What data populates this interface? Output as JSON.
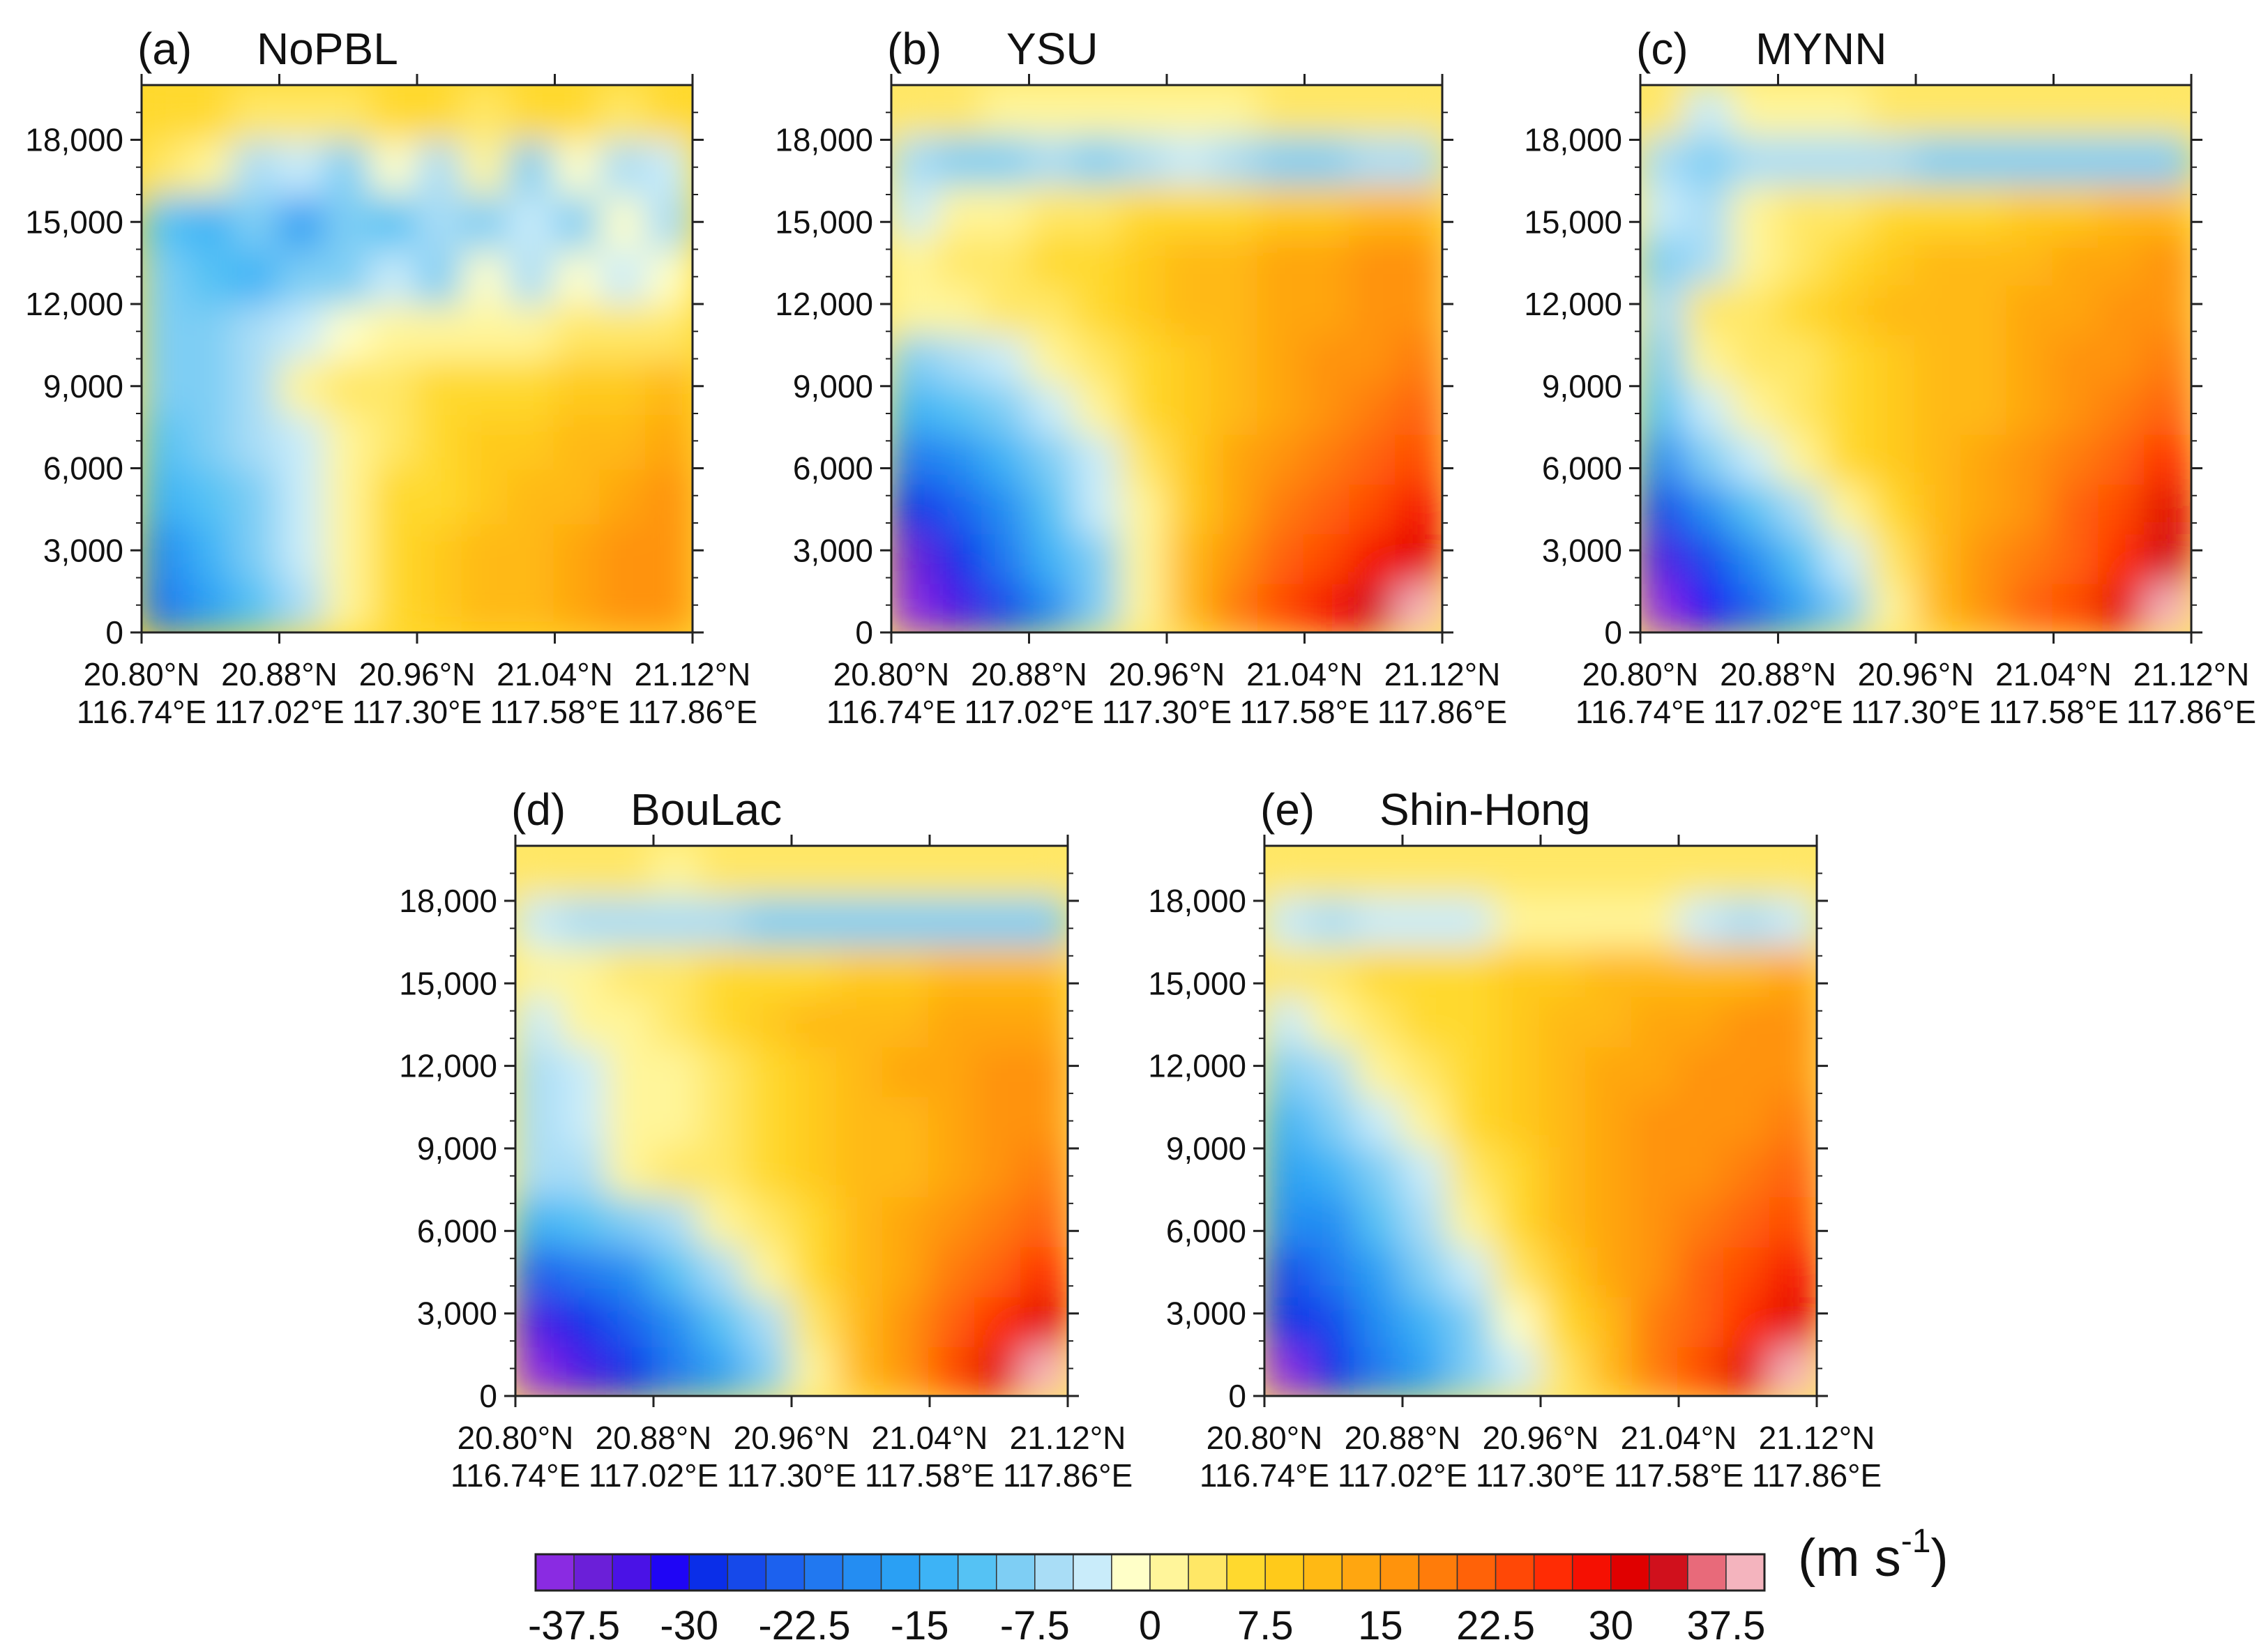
{
  "chart_data": [
    {
      "id": "a",
      "type": "heatmap",
      "panel_label": "(a)",
      "title": "NoPBL",
      "xlabel": "",
      "ylabel": "",
      "ylim": [
        0,
        20000
      ],
      "ytick_labels": [
        "0",
        "3,000",
        "6,000",
        "9,000",
        "12,000",
        "15,000",
        "18,000"
      ],
      "xtick_labels_lat": [
        "20.80°N",
        "20.88°N",
        "20.96°N",
        "21.04°N",
        "21.12°N"
      ],
      "xtick_labels_lon": [
        "116.74°E",
        "117.02°E",
        "117.30°E",
        "117.58°E",
        "117.86°E"
      ],
      "description_of_field": "cross-section wind speed; weak westerly/easterly mix aloft, negative (blue) at low levels west, positive up to ~20 m/s east",
      "values": [
        [
          -22,
          -17,
          -12,
          -6,
          2,
          6,
          8,
          10,
          12,
          14,
          15,
          17
        ],
        [
          -18,
          -14,
          -10,
          -4,
          2,
          6,
          8,
          10,
          12,
          14,
          15,
          16
        ],
        [
          -15,
          -12,
          -8,
          -4,
          1,
          5,
          7,
          9,
          11,
          12,
          14,
          15
        ],
        [
          -12,
          -10,
          -7,
          -3,
          1,
          4,
          6,
          8,
          9,
          11,
          12,
          13
        ],
        [
          -9,
          -8,
          -6,
          2,
          3,
          4,
          5,
          6,
          7,
          8,
          9,
          10
        ],
        [
          -8,
          -10,
          -6,
          -4,
          -2,
          0,
          2,
          1,
          2,
          3,
          4,
          4
        ],
        [
          -10,
          -12,
          -14,
          -8,
          -10,
          -4,
          -8,
          -2,
          -6,
          -1,
          -4,
          -2
        ],
        [
          -12,
          -14,
          -10,
          -16,
          -8,
          -12,
          -6,
          -10,
          -4,
          -8,
          -2,
          -6
        ],
        [
          4,
          2,
          -6,
          -4,
          -8,
          -2,
          -6,
          0,
          -8,
          -2,
          -6,
          -4
        ],
        [
          6,
          5,
          4,
          3,
          4,
          5,
          6,
          4,
          5,
          6,
          4,
          5
        ]
      ]
    },
    {
      "id": "b",
      "type": "heatmap",
      "panel_label": "(b)",
      "title": "YSU",
      "ylim": [
        0,
        20000
      ],
      "ytick_labels": [
        "0",
        "3,000",
        "6,000",
        "9,000",
        "12,000",
        "15,000",
        "18,000"
      ],
      "xtick_labels_lat": [
        "20.80°N",
        "20.88°N",
        "20.96°N",
        "21.04°N",
        "21.12°N"
      ],
      "xtick_labels_lon": [
        "116.74°E",
        "117.02°E",
        "117.30°E",
        "117.58°E",
        "117.86°E"
      ],
      "values": [
        [
          -40,
          -34,
          -26,
          -18,
          -10,
          2,
          12,
          18,
          24,
          28,
          33,
          40
        ],
        [
          -36,
          -28,
          -22,
          -15,
          -8,
          2,
          10,
          16,
          20,
          24,
          28,
          32
        ],
        [
          -30,
          -24,
          -18,
          -12,
          -5,
          2,
          9,
          14,
          18,
          22,
          24,
          28
        ],
        [
          -22,
          -18,
          -14,
          -8,
          -3,
          3,
          9,
          13,
          16,
          19,
          21,
          24
        ],
        [
          -14,
          -12,
          -9,
          -5,
          2,
          5,
          9,
          12,
          14,
          16,
          18,
          20
        ],
        [
          -8,
          -6,
          -3,
          2,
          4,
          6,
          9,
          11,
          13,
          15,
          16,
          18
        ],
        [
          1,
          2,
          3,
          4,
          6,
          8,
          10,
          12,
          13,
          14,
          15,
          16
        ],
        [
          2,
          3,
          4,
          5,
          7,
          9,
          11,
          12,
          13,
          14,
          15,
          16
        ],
        [
          -5,
          2,
          2,
          3,
          4,
          5,
          6,
          7,
          8,
          9,
          10,
          12
        ],
        [
          -6,
          -8,
          -8,
          -6,
          -8,
          -6,
          -4,
          -6,
          -8,
          -8,
          -6,
          -6
        ],
        [
          3,
          3,
          2,
          1,
          2,
          1,
          2,
          2,
          3,
          3,
          3,
          3
        ]
      ]
    },
    {
      "id": "c",
      "type": "heatmap",
      "panel_label": "(c)",
      "title": "MYNN",
      "ylim": [
        0,
        20000
      ],
      "ytick_labels": [
        "0",
        "3,000",
        "6,000",
        "9,000",
        "12,000",
        "15,000",
        "18,000"
      ],
      "xtick_labels_lat": [
        "20.80°N",
        "20.88°N",
        "20.96°N",
        "21.04°N",
        "21.12°N"
      ],
      "xtick_labels_lon": [
        "116.74°E",
        "117.02°E",
        "117.30°E",
        "117.58°E",
        "117.86°E"
      ],
      "values": [
        [
          -40,
          -32,
          -24,
          -16,
          -8,
          2,
          10,
          16,
          20,
          24,
          30,
          38
        ],
        [
          -34,
          -26,
          -18,
          -12,
          -4,
          4,
          10,
          15,
          18,
          22,
          27,
          34
        ],
        [
          -26,
          -18,
          -12,
          -6,
          2,
          6,
          10,
          14,
          17,
          20,
          24,
          30
        ],
        [
          -18,
          -10,
          -4,
          2,
          6,
          8,
          11,
          13,
          15,
          18,
          21,
          26
        ],
        [
          -12,
          -4,
          2,
          3,
          5,
          8,
          10,
          12,
          14,
          16,
          18,
          22
        ],
        [
          -8,
          2,
          3,
          4,
          6,
          8,
          10,
          12,
          14,
          15,
          17,
          19
        ],
        [
          -6,
          3,
          4,
          6,
          8,
          10,
          11,
          12,
          13,
          14,
          16,
          17
        ],
        [
          -8,
          -6,
          2,
          4,
          6,
          8,
          10,
          11,
          12,
          13,
          14,
          16
        ],
        [
          -4,
          -6,
          2,
          3,
          4,
          5,
          6,
          7,
          8,
          9,
          10,
          12
        ],
        [
          -6,
          -8,
          -6,
          -6,
          -6,
          -6,
          -8,
          -8,
          -8,
          -8,
          -8,
          -8
        ],
        [
          3,
          -5,
          2,
          2,
          2,
          3,
          3,
          3,
          3,
          3,
          3,
          3
        ]
      ]
    },
    {
      "id": "d",
      "type": "heatmap",
      "panel_label": "(d)",
      "title": "BouLac",
      "ylim": [
        0,
        20000
      ],
      "ytick_labels": [
        "0",
        "3,000",
        "6,000",
        "9,000",
        "12,000",
        "15,000",
        "18,000"
      ],
      "xtick_labels_lat": [
        "20.80°N",
        "20.88°N",
        "20.96°N",
        "21.04°N",
        "21.12°N"
      ],
      "xtick_labels_lon": [
        "116.74°E",
        "117.02°E",
        "117.30°E",
        "117.58°E",
        "117.86°E"
      ],
      "values": [
        [
          -40,
          -34,
          -28,
          -22,
          -16,
          -10,
          2,
          10,
          16,
          24,
          32,
          40
        ],
        [
          -34,
          -30,
          -24,
          -18,
          -12,
          -6,
          3,
          10,
          15,
          20,
          26,
          32
        ],
        [
          -24,
          -22,
          -18,
          -12,
          -6,
          2,
          6,
          10,
          14,
          18,
          22,
          26
        ],
        [
          -14,
          -12,
          -10,
          -6,
          2,
          4,
          7,
          10,
          13,
          16,
          18,
          22
        ],
        [
          -7,
          -6,
          2,
          3,
          4,
          5,
          8,
          10,
          12,
          14,
          16,
          18
        ],
        [
          -6,
          -4,
          2,
          2,
          4,
          6,
          8,
          10,
          12,
          14,
          16,
          17
        ],
        [
          -6,
          -4,
          2,
          2,
          4,
          6,
          9,
          11,
          13,
          14,
          15,
          16
        ],
        [
          -4,
          2,
          2,
          4,
          6,
          8,
          10,
          11,
          12,
          13,
          14,
          14
        ],
        [
          2,
          2,
          3,
          4,
          5,
          6,
          7,
          8,
          9,
          10,
          10,
          10
        ],
        [
          -5,
          -6,
          -6,
          -6,
          -6,
          -8,
          -8,
          -8,
          -8,
          -8,
          -9,
          -8
        ],
        [
          3,
          3,
          3,
          2,
          3,
          3,
          3,
          3,
          3,
          3,
          3,
          3
        ]
      ]
    },
    {
      "id": "e",
      "type": "heatmap",
      "panel_label": "(e)",
      "title": "Shin-Hong",
      "ylim": [
        0,
        20000
      ],
      "ytick_labels": [
        "0",
        "3,000",
        "6,000",
        "9,000",
        "12,000",
        "15,000",
        "18,000"
      ],
      "xtick_labels_lat": [
        "20.80°N",
        "20.88°N",
        "20.96°N",
        "21.04°N",
        "21.12°N"
      ],
      "xtick_labels_lon": [
        "116.74°E",
        "117.02°E",
        "117.30°E",
        "117.58°E",
        "117.86°E"
      ],
      "values": [
        [
          -38,
          -30,
          -22,
          -16,
          -10,
          -4,
          4,
          12,
          18,
          24,
          30,
          38
        ],
        [
          -30,
          -26,
          -20,
          -14,
          -8,
          -2,
          6,
          12,
          18,
          22,
          26,
          32
        ],
        [
          -26,
          -22,
          -16,
          -10,
          -4,
          3,
          8,
          13,
          17,
          21,
          24,
          28
        ],
        [
          -20,
          -18,
          -12,
          -6,
          2,
          6,
          10,
          14,
          17,
          19,
          21,
          24
        ],
        [
          -16,
          -13,
          -8,
          -3,
          3,
          7,
          10,
          13,
          15,
          17,
          18,
          20
        ],
        [
          -13,
          -10,
          -5,
          2,
          5,
          8,
          11,
          13,
          15,
          16,
          17,
          18
        ],
        [
          -8,
          -6,
          2,
          4,
          7,
          9,
          11,
          13,
          14,
          15,
          16,
          17
        ],
        [
          -4,
          2,
          3,
          5,
          7,
          9,
          11,
          12,
          13,
          14,
          15,
          16
        ],
        [
          3,
          4,
          5,
          6,
          7,
          8,
          9,
          10,
          10,
          11,
          12,
          13
        ],
        [
          -5,
          -6,
          -5,
          -4,
          -3,
          2,
          2,
          2,
          2,
          -4,
          -6,
          -5
        ],
        [
          3,
          3,
          3,
          3,
          3,
          3,
          3,
          3,
          3,
          3,
          3,
          3
        ]
      ]
    }
  ],
  "colorbar": {
    "labels": [
      "-37.5",
      "-30",
      "-22.5",
      "-15",
      "-7.5",
      "0",
      "7.5",
      "15",
      "22.5",
      "30",
      "37.5"
    ],
    "units_main": "(m s",
    "units_exp": "-1",
    "units_close": ")",
    "colors": [
      "#8a2be2",
      "#6b1fd8",
      "#4a12e6",
      "#1f05f5",
      "#0a2ee8",
      "#1649ea",
      "#1c61ee",
      "#2178f0",
      "#248df2",
      "#2aa0f4",
      "#3db3f6",
      "#55c2f4",
      "#7ecef4",
      "#a9ddf6",
      "#c9ecfa",
      "#ffffc8",
      "#fff59a",
      "#ffe766",
      "#ffd92e",
      "#ffca1a",
      "#ffb914",
      "#ffa610",
      "#ff930c",
      "#ff7c0a",
      "#ff6208",
      "#ff4806",
      "#ff2c04",
      "#f51002",
      "#e00000",
      "#d0101c",
      "#e86a7a",
      "#f4b4be"
    ],
    "levels": [
      -45,
      -42.5,
      -40,
      -37.5,
      -35,
      -32.5,
      -30,
      -27.5,
      -25,
      -22.5,
      -20,
      -17.5,
      -15,
      -12.5,
      -10,
      -7.5,
      -5,
      -2.5,
      0,
      2.5,
      5,
      7.5,
      10,
      12.5,
      15,
      17.5,
      20,
      22.5,
      25,
      27.5,
      30,
      32.5,
      35,
      37.5,
      40,
      42.5,
      45
    ]
  }
}
